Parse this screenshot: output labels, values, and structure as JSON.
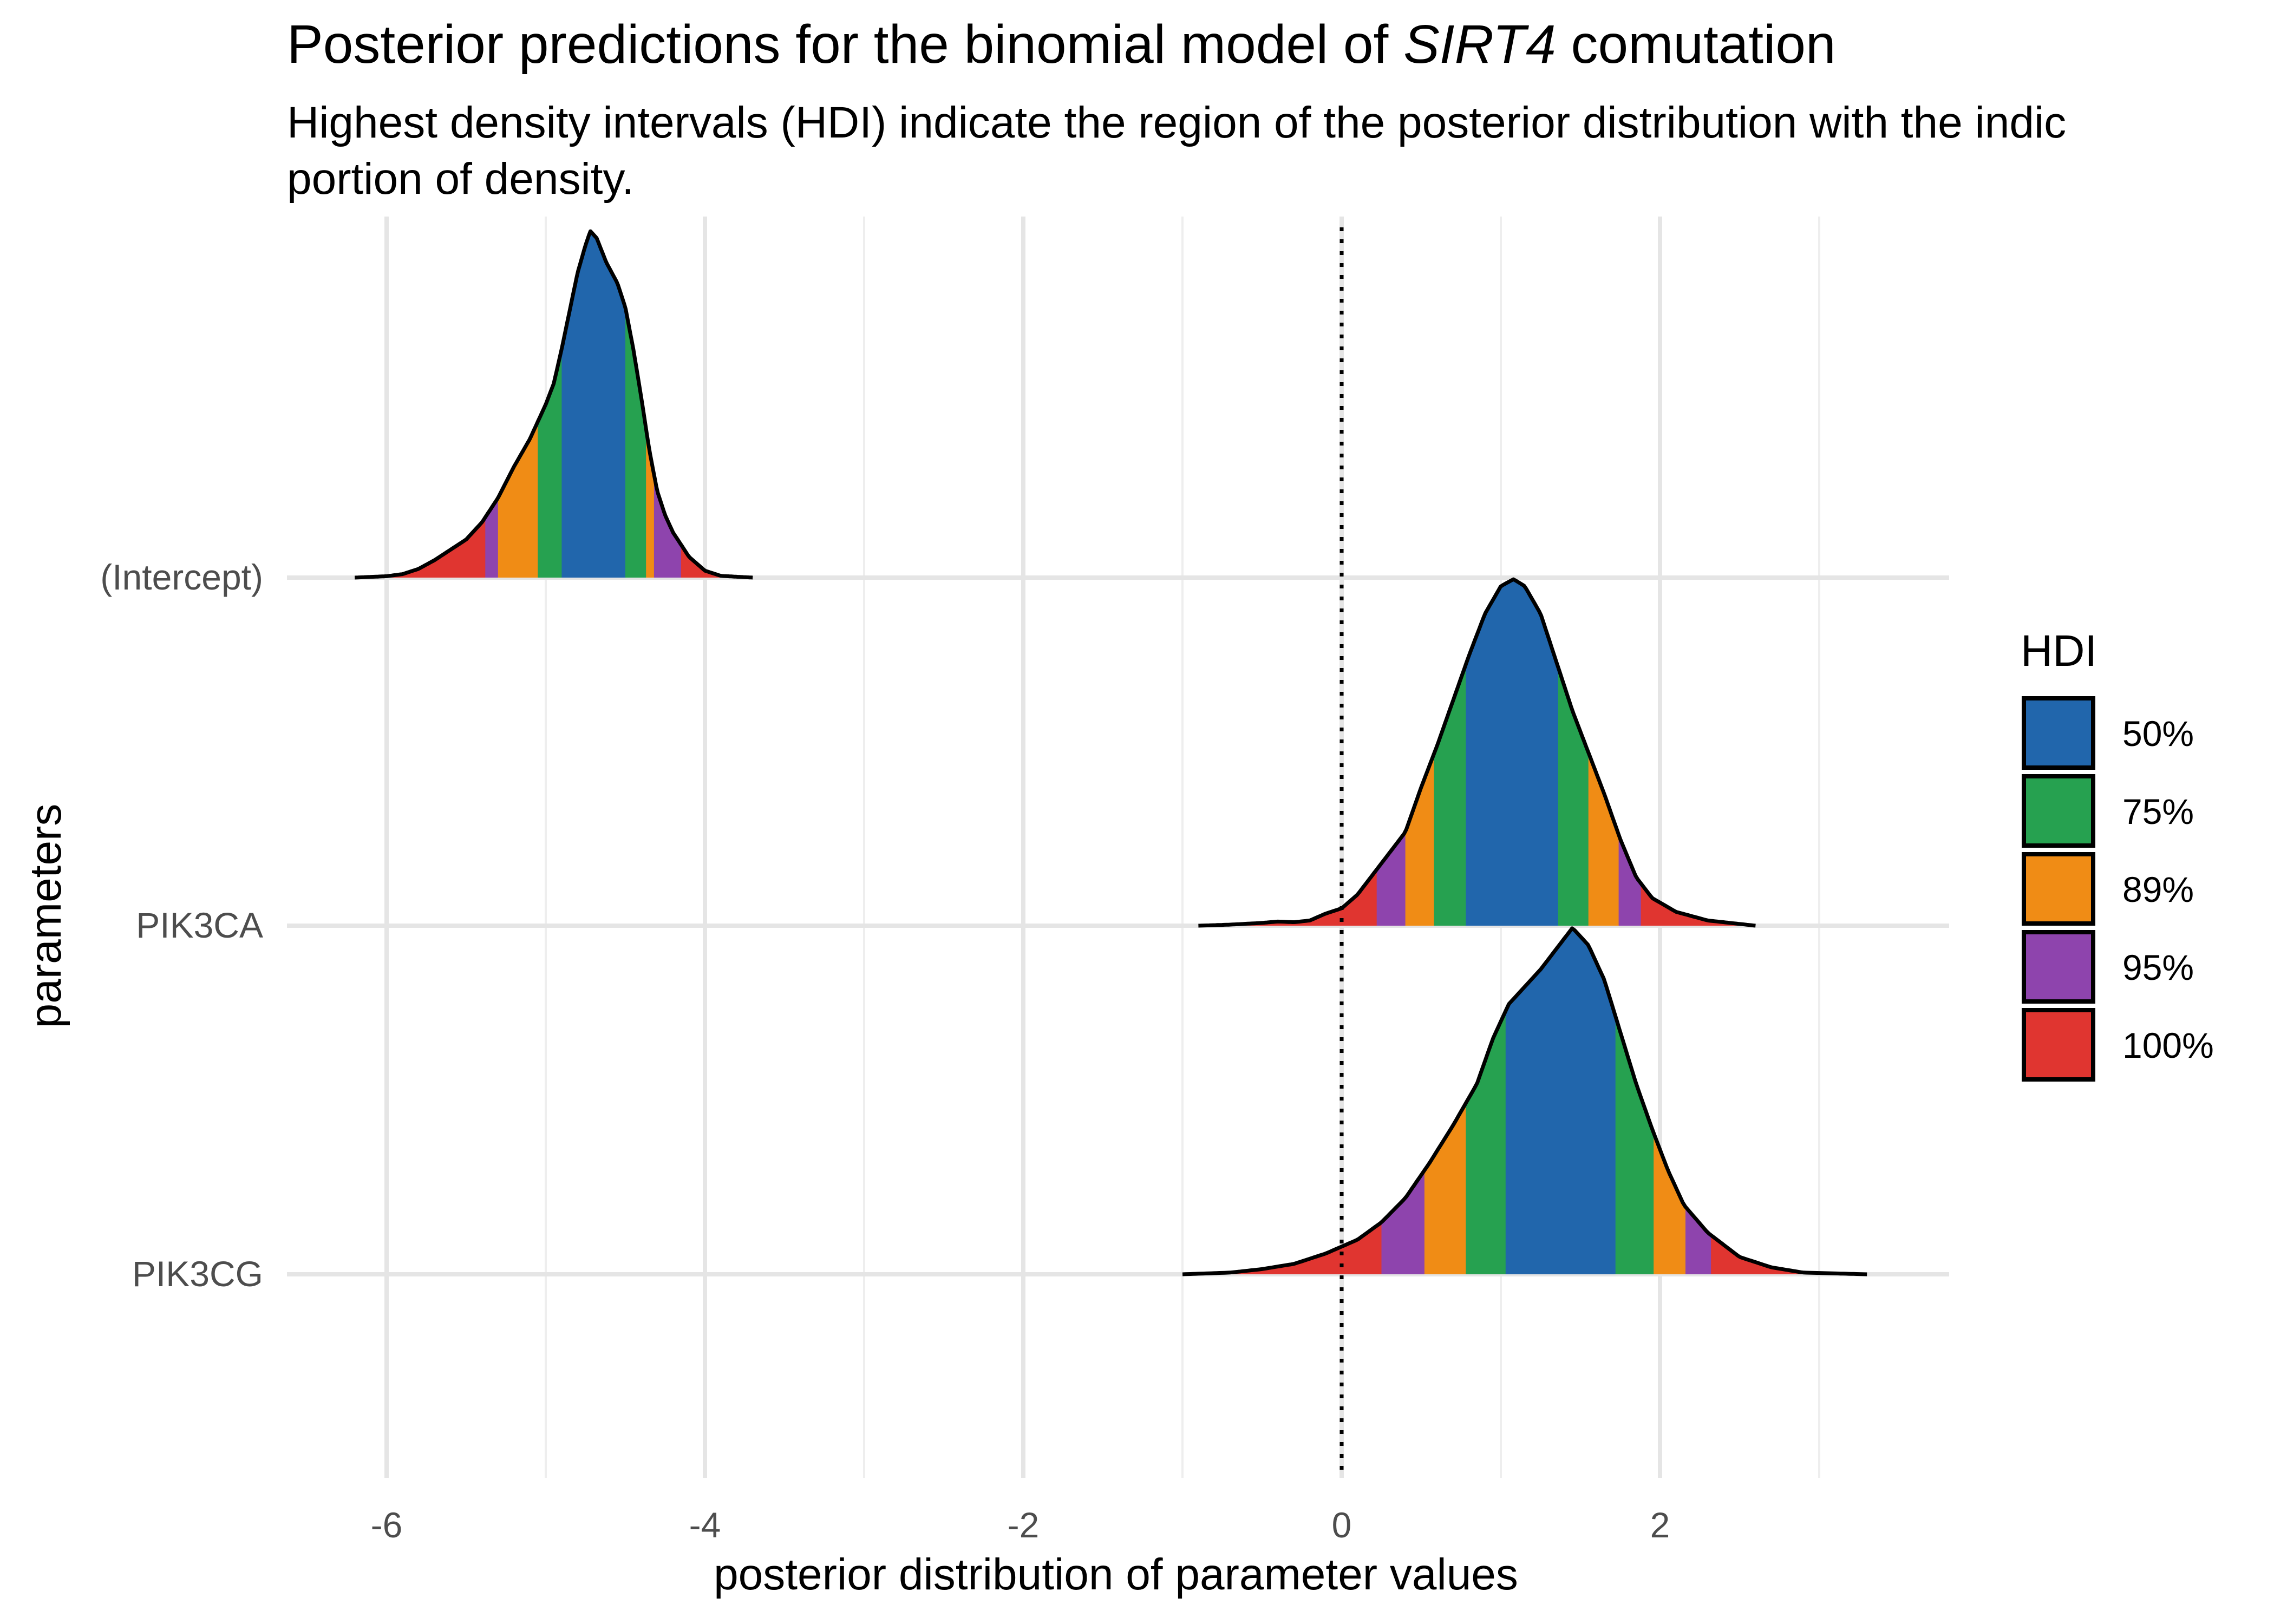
{
  "chart_data": {
    "type": "area",
    "title": {
      "prefix": "Posterior predictions for the binomial model of ",
      "italic": "SIRT4",
      "suffix": " comutation"
    },
    "subtitle": [
      "Highest density intervals (HDI) indicate the region of the posterior distribution with the indic",
      "portion of density."
    ],
    "xlabel": "posterior distribution of parameter values",
    "ylabel": "parameters",
    "xlim": [
      -6.6,
      3.8
    ],
    "x_ticks": [
      -6,
      -4,
      -2,
      0,
      2
    ],
    "x_tick_labels": [
      "-6",
      "-4",
      "-2",
      "0",
      "2"
    ],
    "reference_line": {
      "x": 0,
      "style": "dotted"
    },
    "grid": true,
    "legend": {
      "title": "HDI",
      "placement": "right",
      "entries": [
        {
          "label": "50%",
          "color": "#2166ac"
        },
        {
          "label": "75%",
          "color": "#26a150"
        },
        {
          "label": "89%",
          "color": "#f08c15"
        },
        {
          "label": "95%",
          "color": "#8e44ad"
        },
        {
          "label": "100%",
          "color": "#e03530"
        }
      ]
    },
    "series": [
      {
        "name": "(Intercept)",
        "range": [
          -6.2,
          -3.7
        ],
        "hdi_bounds": {
          "50%": [
            -4.9,
            -4.5
          ],
          "75%": [
            -5.05,
            -4.37
          ],
          "89%": [
            -5.3,
            -4.32
          ],
          "95%": [
            -5.38,
            -4.15
          ],
          "100%": [
            -6.2,
            -3.7
          ]
        },
        "density": [
          [
            -6.2,
            0.0
          ],
          [
            -6.0,
            0.004
          ],
          [
            -5.9,
            0.01
          ],
          [
            -5.8,
            0.025
          ],
          [
            -5.7,
            0.05
          ],
          [
            -5.6,
            0.08
          ],
          [
            -5.5,
            0.11
          ],
          [
            -5.4,
            0.16
          ],
          [
            -5.3,
            0.23
          ],
          [
            -5.2,
            0.32
          ],
          [
            -5.1,
            0.4
          ],
          [
            -5.0,
            0.5
          ],
          [
            -4.95,
            0.56
          ],
          [
            -4.9,
            0.66
          ],
          [
            -4.85,
            0.77
          ],
          [
            -4.8,
            0.88
          ],
          [
            -4.75,
            0.96
          ],
          [
            -4.72,
            1.0
          ],
          [
            -4.68,
            0.98
          ],
          [
            -4.62,
            0.91
          ],
          [
            -4.55,
            0.85
          ],
          [
            -4.5,
            0.78
          ],
          [
            -4.45,
            0.66
          ],
          [
            -4.4,
            0.52
          ],
          [
            -4.35,
            0.37
          ],
          [
            -4.3,
            0.25
          ],
          [
            -4.25,
            0.18
          ],
          [
            -4.2,
            0.13
          ],
          [
            -4.1,
            0.06
          ],
          [
            -4.0,
            0.02
          ],
          [
            -3.9,
            0.005
          ],
          [
            -3.7,
            0.0
          ]
        ]
      },
      {
        "name": "PIK3CA",
        "range": [
          -0.9,
          2.6
        ],
        "hdi_bounds": {
          "50%": [
            0.78,
            1.36
          ],
          "75%": [
            0.58,
            1.55
          ],
          "89%": [
            0.4,
            1.74
          ],
          "95%": [
            0.22,
            1.88
          ],
          "100%": [
            -0.9,
            2.6
          ]
        },
        "density": [
          [
            -0.9,
            0.0
          ],
          [
            -0.7,
            0.003
          ],
          [
            -0.5,
            0.008
          ],
          [
            -0.4,
            0.012
          ],
          [
            -0.3,
            0.01
          ],
          [
            -0.2,
            0.015
          ],
          [
            -0.1,
            0.035
          ],
          [
            0.0,
            0.05
          ],
          [
            0.1,
            0.09
          ],
          [
            0.2,
            0.15
          ],
          [
            0.3,
            0.21
          ],
          [
            0.4,
            0.27
          ],
          [
            0.5,
            0.4
          ],
          [
            0.6,
            0.52
          ],
          [
            0.7,
            0.65
          ],
          [
            0.8,
            0.78
          ],
          [
            0.9,
            0.9
          ],
          [
            1.0,
            0.98
          ],
          [
            1.08,
            1.0
          ],
          [
            1.15,
            0.98
          ],
          [
            1.25,
            0.9
          ],
          [
            1.35,
            0.76
          ],
          [
            1.45,
            0.62
          ],
          [
            1.55,
            0.5
          ],
          [
            1.65,
            0.38
          ],
          [
            1.75,
            0.25
          ],
          [
            1.85,
            0.14
          ],
          [
            1.95,
            0.08
          ],
          [
            2.1,
            0.04
          ],
          [
            2.3,
            0.015
          ],
          [
            2.6,
            0.0
          ]
        ]
      },
      {
        "name": "PIK3CG",
        "range": [
          -1.0,
          3.3
        ],
        "hdi_bounds": {
          "50%": [
            1.03,
            1.72
          ],
          "75%": [
            0.78,
            1.96
          ],
          "89%": [
            0.52,
            2.16
          ],
          "95%": [
            0.25,
            2.32
          ],
          "100%": [
            -1.0,
            3.3
          ]
        },
        "density": [
          [
            -1.0,
            0.0
          ],
          [
            -0.7,
            0.005
          ],
          [
            -0.5,
            0.015
          ],
          [
            -0.3,
            0.03
          ],
          [
            -0.1,
            0.06
          ],
          [
            0.1,
            0.1
          ],
          [
            0.25,
            0.15
          ],
          [
            0.4,
            0.22
          ],
          [
            0.55,
            0.32
          ],
          [
            0.7,
            0.43
          ],
          [
            0.85,
            0.55
          ],
          [
            0.95,
            0.68
          ],
          [
            1.05,
            0.78
          ],
          [
            1.15,
            0.83
          ],
          [
            1.25,
            0.88
          ],
          [
            1.35,
            0.94
          ],
          [
            1.45,
            1.0
          ],
          [
            1.55,
            0.95
          ],
          [
            1.65,
            0.85
          ],
          [
            1.75,
            0.7
          ],
          [
            1.85,
            0.55
          ],
          [
            1.95,
            0.42
          ],
          [
            2.05,
            0.3
          ],
          [
            2.15,
            0.2
          ],
          [
            2.3,
            0.12
          ],
          [
            2.5,
            0.05
          ],
          [
            2.7,
            0.02
          ],
          [
            2.9,
            0.005
          ],
          [
            3.3,
            0.0
          ]
        ]
      }
    ]
  }
}
